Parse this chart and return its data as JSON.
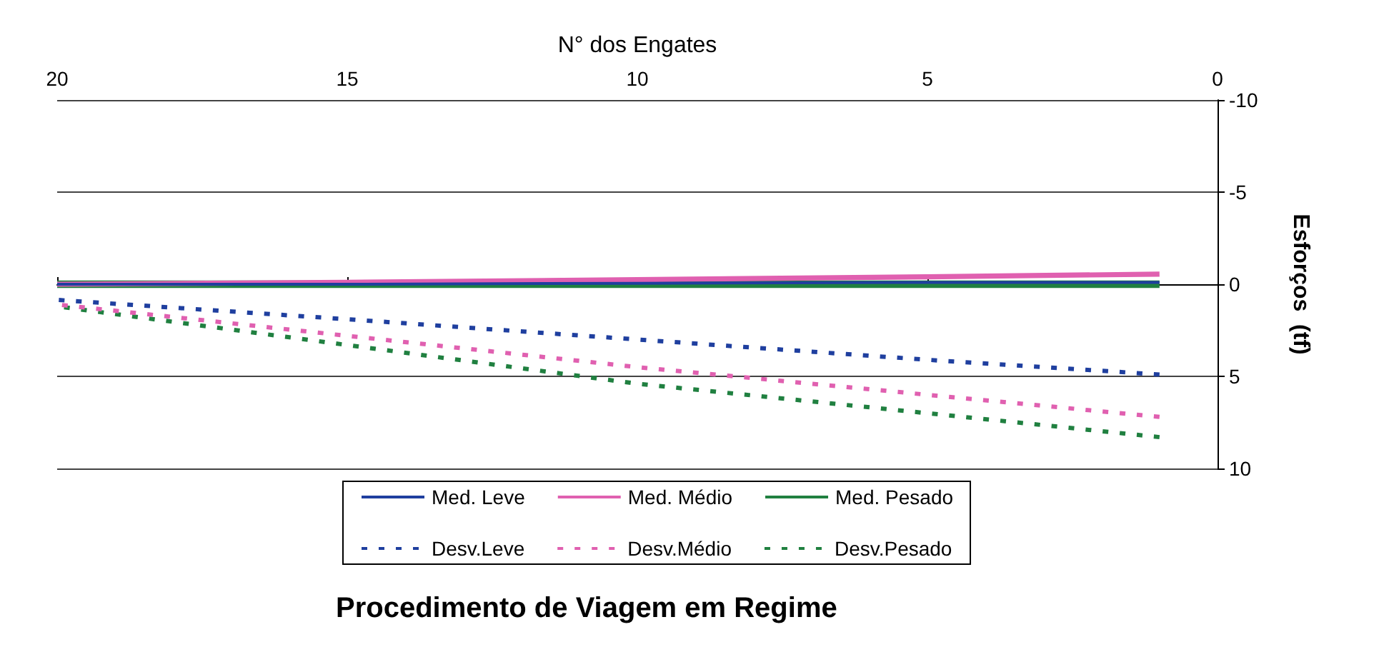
{
  "chart_data": {
    "type": "line",
    "title": "Procedimento de Viagem em Regime",
    "xlabel": "N° dos Engates",
    "ylabel": "Esforços  (tf)",
    "x": [
      1,
      5,
      10,
      15,
      20
    ],
    "series": [
      {
        "name": "Med. Leve",
        "color": "#1f3f9f",
        "line_style": "solid",
        "values": [
          -0.1,
          -0.1,
          -0.05,
          0,
          0
        ]
      },
      {
        "name": "Med. Médio",
        "color": "#e060b0",
        "line_style": "solid",
        "values": [
          -0.55,
          -0.4,
          -0.25,
          -0.1,
          0
        ]
      },
      {
        "name": "Med. Pesado",
        "color": "#208040",
        "line_style": "solid",
        "values": [
          0,
          0,
          0,
          0,
          0
        ]
      },
      {
        "name": "Desv.Leve",
        "color": "#1f3f9f",
        "line_style": "dashed",
        "values": [
          4.9,
          4.1,
          3.0,
          1.9,
          0.85
        ]
      },
      {
        "name": "Desv.Médio",
        "color": "#e060b0",
        "line_style": "dashed",
        "values": [
          7.2,
          6.0,
          4.5,
          2.8,
          1.1
        ]
      },
      {
        "name": "Desv.Pesado",
        "color": "#208040",
        "line_style": "dashed",
        "values": [
          8.3,
          7.0,
          5.4,
          3.3,
          1.2
        ]
      }
    ],
    "xlim": [
      20,
      0
    ],
    "xticks": [
      0,
      5,
      10,
      15,
      20
    ],
    "ylim": [
      10,
      -10
    ],
    "yticks": [
      -10,
      -5,
      0,
      5,
      10
    ],
    "grid": "y",
    "legend": "bottom",
    "marker": "none"
  }
}
